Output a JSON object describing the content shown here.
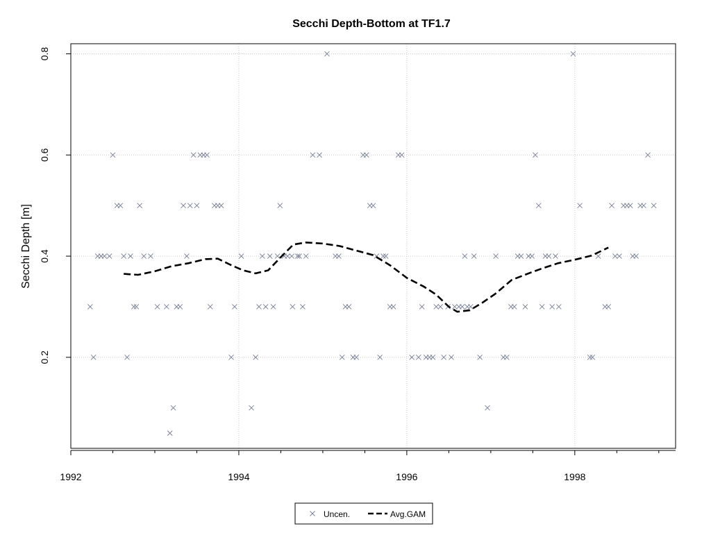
{
  "chart_data": {
    "type": "scatter",
    "title": "Secchi Depth-Bottom at TF1.7",
    "xlabel": "",
    "ylabel": "Secchi Depth [m]",
    "xlim": [
      1992,
      1999.2
    ],
    "ylim": [
      0.02,
      0.82
    ],
    "x_ticks": [
      1992,
      1994,
      1996,
      1998
    ],
    "x_tick_labels": [
      "1992",
      "1994",
      "1996",
      "1998"
    ],
    "y_ticks": [
      0.2,
      0.4,
      0.6,
      0.8
    ],
    "y_tick_labels": [
      "0.2",
      "0.4",
      "0.6",
      "0.8"
    ],
    "grid": true,
    "legend_position": "bottom",
    "series": [
      {
        "name": "Uncen.",
        "kind": "scatter",
        "marker": "x",
        "color": "#7a8296",
        "points": [
          [
            1992.23,
            0.3
          ],
          [
            1992.27,
            0.2
          ],
          [
            1992.32,
            0.4
          ],
          [
            1992.36,
            0.4
          ],
          [
            1992.4,
            0.4
          ],
          [
            1992.46,
            0.4
          ],
          [
            1992.5,
            0.6
          ],
          [
            1992.55,
            0.5
          ],
          [
            1992.59,
            0.5
          ],
          [
            1992.63,
            0.4
          ],
          [
            1992.67,
            0.2
          ],
          [
            1992.71,
            0.4
          ],
          [
            1992.75,
            0.3
          ],
          [
            1992.78,
            0.3
          ],
          [
            1992.82,
            0.5
          ],
          [
            1992.87,
            0.4
          ],
          [
            1992.95,
            0.4
          ],
          [
            1993.03,
            0.3
          ],
          [
            1993.14,
            0.3
          ],
          [
            1993.18,
            0.05
          ],
          [
            1993.22,
            0.1
          ],
          [
            1993.26,
            0.3
          ],
          [
            1993.3,
            0.3
          ],
          [
            1993.34,
            0.5
          ],
          [
            1993.38,
            0.4
          ],
          [
            1993.42,
            0.5
          ],
          [
            1993.46,
            0.6
          ],
          [
            1993.5,
            0.5
          ],
          [
            1993.54,
            0.6
          ],
          [
            1993.58,
            0.6
          ],
          [
            1993.62,
            0.6
          ],
          [
            1993.66,
            0.3
          ],
          [
            1993.71,
            0.5
          ],
          [
            1993.75,
            0.5
          ],
          [
            1993.79,
            0.5
          ],
          [
            1993.91,
            0.2
          ],
          [
            1993.95,
            0.3
          ],
          [
            1994.03,
            0.4
          ],
          [
            1994.15,
            0.1
          ],
          [
            1994.2,
            0.2
          ],
          [
            1994.24,
            0.3
          ],
          [
            1994.28,
            0.4
          ],
          [
            1994.32,
            0.3
          ],
          [
            1994.37,
            0.4
          ],
          [
            1994.41,
            0.3
          ],
          [
            1994.46,
            0.4
          ],
          [
            1994.49,
            0.5
          ],
          [
            1994.54,
            0.4
          ],
          [
            1994.58,
            0.4
          ],
          [
            1994.63,
            0.4
          ],
          [
            1994.64,
            0.3
          ],
          [
            1994.7,
            0.4
          ],
          [
            1994.72,
            0.4
          ],
          [
            1994.76,
            0.3
          ],
          [
            1994.8,
            0.4
          ],
          [
            1994.88,
            0.6
          ],
          [
            1994.96,
            0.6
          ],
          [
            1995.05,
            0.8
          ],
          [
            1995.15,
            0.4
          ],
          [
            1995.19,
            0.4
          ],
          [
            1995.23,
            0.2
          ],
          [
            1995.27,
            0.3
          ],
          [
            1995.31,
            0.3
          ],
          [
            1995.36,
            0.2
          ],
          [
            1995.4,
            0.2
          ],
          [
            1995.48,
            0.6
          ],
          [
            1995.52,
            0.6
          ],
          [
            1995.56,
            0.5
          ],
          [
            1995.6,
            0.5
          ],
          [
            1995.64,
            0.4
          ],
          [
            1995.68,
            0.2
          ],
          [
            1995.72,
            0.4
          ],
          [
            1995.75,
            0.4
          ],
          [
            1995.8,
            0.3
          ],
          [
            1995.84,
            0.3
          ],
          [
            1995.9,
            0.6
          ],
          [
            1995.94,
            0.6
          ],
          [
            1996.06,
            0.2
          ],
          [
            1996.14,
            0.2
          ],
          [
            1996.18,
            0.3
          ],
          [
            1996.23,
            0.2
          ],
          [
            1996.27,
            0.2
          ],
          [
            1996.31,
            0.2
          ],
          [
            1996.35,
            0.3
          ],
          [
            1996.4,
            0.3
          ],
          [
            1996.44,
            0.2
          ],
          [
            1996.49,
            0.3
          ],
          [
            1996.53,
            0.2
          ],
          [
            1996.57,
            0.3
          ],
          [
            1996.62,
            0.3
          ],
          [
            1996.66,
            0.3
          ],
          [
            1996.69,
            0.4
          ],
          [
            1996.72,
            0.3
          ],
          [
            1996.76,
            0.3
          ],
          [
            1996.8,
            0.4
          ],
          [
            1996.87,
            0.2
          ],
          [
            1996.96,
            0.1
          ],
          [
            1997.06,
            0.4
          ],
          [
            1997.15,
            0.2
          ],
          [
            1997.19,
            0.2
          ],
          [
            1997.24,
            0.3
          ],
          [
            1997.28,
            0.3
          ],
          [
            1997.32,
            0.4
          ],
          [
            1997.36,
            0.4
          ],
          [
            1997.41,
            0.3
          ],
          [
            1997.45,
            0.4
          ],
          [
            1997.49,
            0.4
          ],
          [
            1997.53,
            0.6
          ],
          [
            1997.57,
            0.5
          ],
          [
            1997.61,
            0.3
          ],
          [
            1997.65,
            0.4
          ],
          [
            1997.69,
            0.4
          ],
          [
            1997.73,
            0.3
          ],
          [
            1997.77,
            0.4
          ],
          [
            1997.81,
            0.3
          ],
          [
            1997.98,
            0.8
          ],
          [
            1998.06,
            0.5
          ],
          [
            1998.18,
            0.2
          ],
          [
            1998.21,
            0.2
          ],
          [
            1998.28,
            0.4
          ],
          [
            1998.36,
            0.3
          ],
          [
            1998.4,
            0.3
          ],
          [
            1998.44,
            0.5
          ],
          [
            1998.48,
            0.4
          ],
          [
            1998.53,
            0.4
          ],
          [
            1998.58,
            0.5
          ],
          [
            1998.62,
            0.5
          ],
          [
            1998.66,
            0.5
          ],
          [
            1998.69,
            0.4
          ],
          [
            1998.73,
            0.4
          ],
          [
            1998.78,
            0.5
          ],
          [
            1998.82,
            0.5
          ],
          [
            1998.87,
            0.6
          ],
          [
            1998.94,
            0.5
          ]
        ]
      },
      {
        "name": "Avg.GAM",
        "kind": "line",
        "style": "dashed",
        "color": "#000000",
        "points": [
          [
            1992.63,
            0.365
          ],
          [
            1992.8,
            0.363
          ],
          [
            1993.0,
            0.37
          ],
          [
            1993.2,
            0.38
          ],
          [
            1993.4,
            0.386
          ],
          [
            1993.6,
            0.394
          ],
          [
            1993.75,
            0.395
          ],
          [
            1993.9,
            0.383
          ],
          [
            1994.05,
            0.372
          ],
          [
            1994.2,
            0.366
          ],
          [
            1994.35,
            0.372
          ],
          [
            1994.5,
            0.398
          ],
          [
            1994.65,
            0.423
          ],
          [
            1994.8,
            0.427
          ],
          [
            1995.0,
            0.425
          ],
          [
            1995.2,
            0.42
          ],
          [
            1995.4,
            0.411
          ],
          [
            1995.6,
            0.402
          ],
          [
            1995.8,
            0.382
          ],
          [
            1996.0,
            0.357
          ],
          [
            1996.2,
            0.34
          ],
          [
            1996.35,
            0.324
          ],
          [
            1996.5,
            0.3
          ],
          [
            1996.6,
            0.29
          ],
          [
            1996.75,
            0.293
          ],
          [
            1996.9,
            0.308
          ],
          [
            1997.05,
            0.325
          ],
          [
            1997.25,
            0.353
          ],
          [
            1997.45,
            0.366
          ],
          [
            1997.6,
            0.375
          ],
          [
            1997.8,
            0.386
          ],
          [
            1998.0,
            0.393
          ],
          [
            1998.2,
            0.401
          ],
          [
            1998.4,
            0.417
          ]
        ]
      }
    ]
  }
}
